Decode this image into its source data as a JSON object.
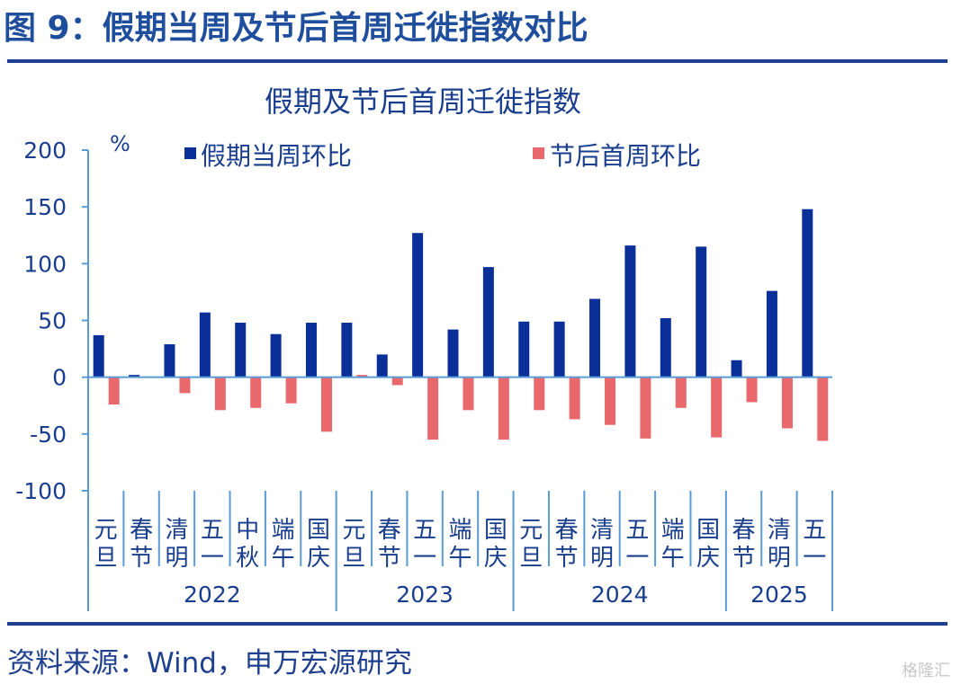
{
  "header": {
    "title": "图 9：假期当周及节后首周迁徙指数对比"
  },
  "footer": {
    "source": "资料来源：Wind，申万宏源研究",
    "watermark": "格隆汇"
  },
  "colors": {
    "holiday_week": "#0a2f99",
    "post_holiday_week": "#e8686b",
    "axis": "#5b9bd5",
    "text": "#1a3e8e"
  },
  "chart_data": {
    "type": "bar",
    "title": "假期及节后首周迁徙指数",
    "ylabel": "%",
    "ylim": [
      -100,
      200
    ],
    "yticks": [
      "200",
      "150",
      "100",
      "50",
      "0",
      "-50",
      "-100"
    ],
    "categories": [
      "元旦",
      "春节",
      "清明",
      "五一",
      "中秋",
      "端午",
      "国庆",
      "元旦",
      "春节",
      "五一",
      "端午",
      "国庆",
      "元旦",
      "春节",
      "清明",
      "五一",
      "端午",
      "国庆",
      "春节",
      "清明",
      "五一"
    ],
    "year_groups": [
      {
        "label": "2022",
        "count": 7
      },
      {
        "label": "2023",
        "count": 5
      },
      {
        "label": "2024",
        "count": 6
      },
      {
        "label": "2025",
        "count": 3
      }
    ],
    "series": [
      {
        "name": "假期当周环比",
        "values": [
          37,
          2,
          29,
          57,
          48,
          38,
          48,
          48,
          20,
          127,
          42,
          97,
          49,
          49,
          69,
          116,
          52,
          115,
          15,
          76,
          148
        ]
      },
      {
        "name": "节后首周环比",
        "values": [
          -24,
          0,
          -14,
          -29,
          -27,
          -23,
          -48,
          2,
          -7,
          -55,
          -29,
          -55,
          -29,
          -37,
          -42,
          -54,
          -27,
          -53,
          -22,
          -45,
          -56
        ]
      }
    ],
    "legend_position": "top",
    "grid": false
  }
}
